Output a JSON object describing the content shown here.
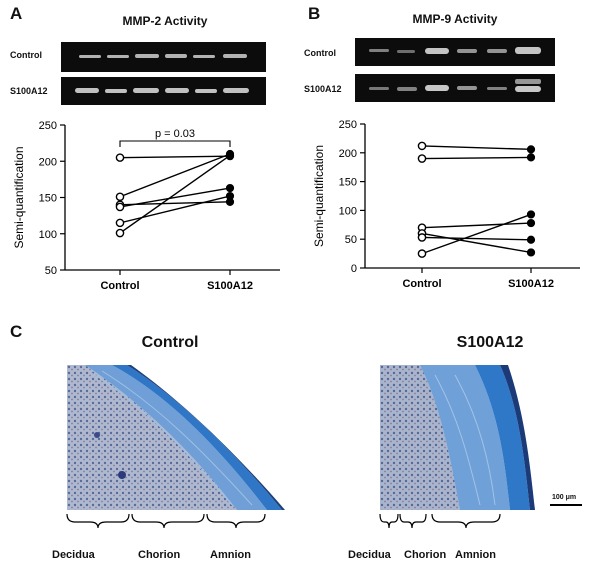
{
  "panel_a": {
    "letter": "A",
    "title": "MMP-2 Activity",
    "blot_labels": [
      "Control",
      "S100A12"
    ],
    "pvalue": "p = 0.03"
  },
  "panel_b": {
    "letter": "B",
    "title": "MMP-9 Activity",
    "blot_labels": [
      "Control",
      "S100A12"
    ]
  },
  "panel_c": {
    "letter": "C",
    "titles": [
      "Control",
      "S100A12"
    ],
    "left_regions": [
      "Decidua",
      "Chorion",
      "Amnion"
    ],
    "right_regions": [
      "Decidua",
      "Chorion",
      "Amnion"
    ],
    "scale_bar": "100 μm"
  },
  "chart_data": [
    {
      "type": "line",
      "title": "MMP-2 Activity",
      "categories": [
        "Control",
        "S100A12"
      ],
      "ylabel": "Semi-quantification",
      "ylim": [
        50,
        250
      ],
      "yticks": [
        50,
        100,
        150,
        200,
        250
      ],
      "pairs": [
        [
          205,
          207
        ],
        [
          151,
          210
        ],
        [
          140,
          144
        ],
        [
          137,
          163
        ],
        [
          115,
          152
        ],
        [
          101,
          208
        ]
      ],
      "colors": {
        "control_marker": "#ffffff",
        "treated_marker": "#000000"
      }
    },
    {
      "type": "line",
      "title": "MMP-9 Activity",
      "categories": [
        "Control",
        "S100A12"
      ],
      "ylabel": "Semi-quantification",
      "ylim": [
        0,
        250
      ],
      "yticks": [
        0,
        50,
        100,
        150,
        200,
        250
      ],
      "pairs": [
        [
          212,
          206
        ],
        [
          190,
          192
        ],
        [
          70,
          78
        ],
        [
          60,
          27
        ],
        [
          53,
          49
        ],
        [
          25,
          93
        ]
      ],
      "colors": {
        "control_marker": "#ffffff",
        "treated_marker": "#000000"
      }
    }
  ]
}
